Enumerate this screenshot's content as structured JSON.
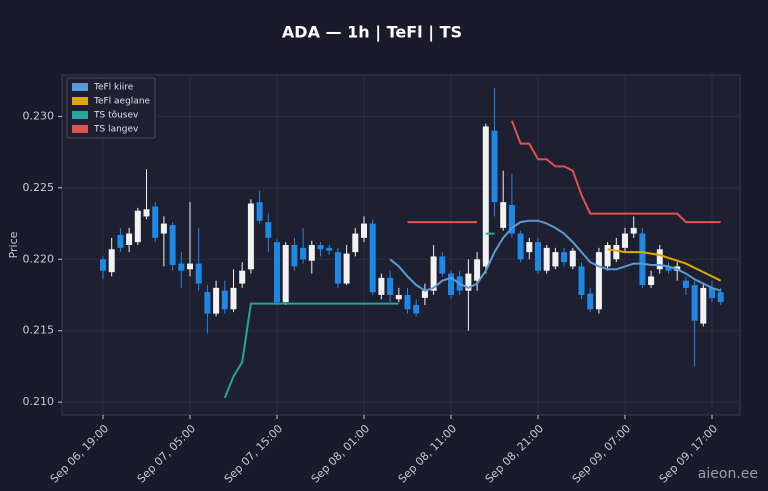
{
  "chart_data": {
    "type": "candlestick",
    "title": "ADA — 1h  |  TeFl  |  TS",
    "y_label": "Price",
    "categories": [
      "Sep 06, 19:00",
      null,
      null,
      null,
      null,
      null,
      null,
      null,
      null,
      null,
      "Sep 07, 05:00",
      null,
      null,
      null,
      null,
      null,
      null,
      null,
      null,
      null,
      "Sep 07, 15:00",
      null,
      null,
      null,
      null,
      null,
      null,
      null,
      null,
      null,
      "Sep 08, 01:00",
      null,
      null,
      null,
      null,
      null,
      null,
      null,
      null,
      null,
      "Sep 08, 11:00",
      null,
      null,
      null,
      null,
      null,
      null,
      null,
      null,
      null,
      "Sep 08, 21:00",
      null,
      null,
      null,
      null,
      null,
      null,
      null,
      null,
      null,
      "Sep 09, 07:00",
      null,
      null,
      null,
      null,
      null,
      null,
      null,
      null,
      null,
      "Sep 09, 17:00",
      null
    ],
    "open": [
      0.22,
      0.2191,
      0.2217,
      0.221,
      0.2212,
      0.223,
      0.2237,
      0.2218,
      0.2224,
      0.2197,
      0.2193,
      0.2197,
      0.2177,
      0.2162,
      0.2178,
      0.2165,
      0.2183,
      0.2193,
      0.224,
      0.2226,
      0.2212,
      0.217,
      0.221,
      0.2208,
      0.2199,
      0.221,
      0.2208,
      0.2205,
      0.2183,
      0.2205,
      0.2215,
      0.2225,
      0.2175,
      0.2187,
      0.2172,
      0.2175,
      0.2168,
      0.2173,
      0.2178,
      0.2202,
      0.219,
      0.2188,
      0.2178,
      0.2185,
      0.2195,
      0.229,
      0.2222,
      0.2238,
      0.2218,
      0.2205,
      0.2212,
      0.2192,
      0.2195,
      0.2205,
      0.2195,
      0.2195,
      0.2176,
      0.2165,
      0.2195,
      0.22,
      0.2208,
      0.2218,
      0.2218,
      0.2182,
      0.2193,
      0.2195,
      0.2192,
      0.2185,
      0.2182,
      0.2155,
      0.218,
      0.2177
    ],
    "high": [
      0.2202,
      0.2215,
      0.2222,
      0.2222,
      0.2236,
      0.2263,
      0.224,
      0.223,
      0.2226,
      0.2205,
      0.224,
      0.2222,
      0.2182,
      0.2185,
      0.2185,
      0.2193,
      0.2198,
      0.2242,
      0.2248,
      0.2232,
      0.2214,
      0.2212,
      0.2215,
      0.2222,
      0.2213,
      0.2212,
      0.221,
      0.2208,
      0.221,
      0.2222,
      0.223,
      0.2228,
      0.219,
      0.2192,
      0.218,
      0.218,
      0.2172,
      0.2183,
      0.221,
      0.2205,
      0.2192,
      0.2192,
      0.22,
      0.2205,
      0.2295,
      0.232,
      0.2262,
      0.226,
      0.222,
      0.2215,
      0.2215,
      0.221,
      0.2208,
      0.2208,
      0.2208,
      0.2198,
      0.218,
      0.2208,
      0.2212,
      0.2215,
      0.2222,
      0.223,
      0.2222,
      0.2192,
      0.221,
      0.2198,
      0.2198,
      0.2188,
      0.2185,
      0.2183,
      0.2185,
      0.218
    ],
    "low": [
      0.2186,
      0.2188,
      0.2205,
      0.2205,
      0.221,
      0.2228,
      0.2212,
      0.2195,
      0.2192,
      0.218,
      0.2188,
      0.2178,
      0.2148,
      0.216,
      0.2162,
      0.2163,
      0.218,
      0.219,
      0.2225,
      0.2205,
      0.2168,
      0.2168,
      0.2192,
      0.2197,
      0.219,
      0.2202,
      0.2203,
      0.218,
      0.2182,
      0.2202,
      0.2212,
      0.2175,
      0.2172,
      0.217,
      0.217,
      0.2162,
      0.216,
      0.2168,
      0.2175,
      0.2188,
      0.2172,
      0.2175,
      0.215,
      0.2178,
      0.219,
      0.223,
      0.222,
      0.2215,
      0.2198,
      0.22,
      0.219,
      0.219,
      0.2193,
      0.2195,
      0.2193,
      0.2172,
      0.2163,
      0.2162,
      0.2192,
      0.2198,
      0.2205,
      0.2215,
      0.218,
      0.218,
      0.219,
      0.219,
      0.2185,
      0.2175,
      0.2125,
      0.2153,
      0.217,
      0.2168
    ],
    "close": [
      0.2192,
      0.2207,
      0.2208,
      0.2218,
      0.2234,
      0.2235,
      0.2215,
      0.2225,
      0.2196,
      0.2192,
      0.2197,
      0.2183,
      0.2162,
      0.218,
      0.2165,
      0.218,
      0.2192,
      0.2239,
      0.2227,
      0.2215,
      0.217,
      0.221,
      0.2195,
      0.22,
      0.221,
      0.2207,
      0.2206,
      0.2183,
      0.2204,
      0.2218,
      0.2225,
      0.2177,
      0.2187,
      0.2175,
      0.2175,
      0.2165,
      0.2162,
      0.2178,
      0.2202,
      0.219,
      0.2175,
      0.2178,
      0.219,
      0.22,
      0.2293,
      0.224,
      0.224,
      0.2218,
      0.22,
      0.2212,
      0.2192,
      0.2208,
      0.2205,
      0.2198,
      0.2206,
      0.2175,
      0.2165,
      0.2205,
      0.221,
      0.221,
      0.2218,
      0.2222,
      0.2182,
      0.2188,
      0.2207,
      0.2192,
      0.2195,
      0.218,
      0.2157,
      0.218,
      0.2173,
      0.217
    ],
    "up_color": "#f2f2f2",
    "down_color": "#1e88e5",
    "series": [
      {
        "name": "TeFl kiire",
        "color": "#5b9bd5",
        "values": [
          null,
          null,
          null,
          null,
          null,
          null,
          null,
          null,
          null,
          null,
          null,
          null,
          null,
          null,
          null,
          null,
          null,
          null,
          null,
          null,
          null,
          null,
          null,
          null,
          null,
          null,
          null,
          null,
          null,
          null,
          null,
          null,
          null,
          0.22,
          0.2195,
          0.2188,
          0.2182,
          0.2178,
          0.218,
          0.2185,
          0.2187,
          0.2183,
          0.218,
          0.2183,
          0.2192,
          0.2205,
          0.2215,
          0.2222,
          0.2226,
          0.2227,
          0.2227,
          0.2225,
          0.2222,
          0.2218,
          0.2212,
          0.2205,
          0.2198,
          0.2195,
          0.2193,
          0.2193,
          0.2195,
          0.2197,
          0.2197,
          0.2196,
          0.2196,
          0.2195,
          0.2193,
          0.219,
          0.2186,
          0.2183,
          0.218,
          0.2178
        ]
      },
      {
        "name": "TeFl aeglane",
        "color": "#e0a800",
        "values": [
          null,
          null,
          null,
          null,
          null,
          null,
          null,
          null,
          null,
          null,
          null,
          null,
          null,
          null,
          null,
          null,
          null,
          null,
          null,
          null,
          null,
          null,
          null,
          null,
          null,
          null,
          null,
          null,
          null,
          null,
          null,
          null,
          null,
          null,
          null,
          null,
          null,
          null,
          null,
          null,
          null,
          null,
          null,
          null,
          null,
          null,
          null,
          null,
          null,
          null,
          null,
          null,
          null,
          null,
          null,
          null,
          null,
          null,
          0.2207,
          0.2206,
          0.2205,
          0.2205,
          0.2205,
          0.2204,
          0.2203,
          0.2201,
          0.2199,
          0.2197,
          0.2194,
          0.2191,
          0.2188,
          0.2185
        ]
      },
      {
        "name": "TS tõusev",
        "color": "#26a69a",
        "values": [
          null,
          null,
          null,
          null,
          null,
          null,
          null,
          null,
          null,
          null,
          null,
          null,
          null,
          null,
          0.2103,
          0.2118,
          0.2128,
          0.2169,
          0.2169,
          0.2169,
          0.2169,
          0.2169,
          0.2169,
          0.2169,
          0.2169,
          0.2169,
          0.2169,
          0.2169,
          0.2169,
          0.2169,
          0.2169,
          0.2169,
          0.2169,
          0.2169,
          0.2169,
          null,
          null,
          null,
          null,
          null,
          null,
          null,
          null,
          null,
          0.2218,
          0.2218,
          null,
          null,
          null,
          null,
          null,
          null,
          null,
          null,
          null,
          null,
          null,
          null,
          null,
          null,
          null,
          null,
          null,
          null,
          null,
          null,
          null,
          null,
          null,
          null,
          null,
          null
        ]
      },
      {
        "name": "TS langev",
        "color": "#e05252",
        "values": [
          null,
          null,
          null,
          null,
          null,
          null,
          null,
          null,
          null,
          null,
          null,
          null,
          null,
          null,
          null,
          null,
          null,
          null,
          null,
          null,
          null,
          null,
          null,
          null,
          null,
          null,
          null,
          null,
          null,
          null,
          null,
          null,
          null,
          null,
          null,
          0.2226,
          0.2226,
          0.2226,
          0.2226,
          0.2226,
          0.2226,
          0.2226,
          0.2226,
          0.2226,
          null,
          null,
          null,
          0.2297,
          0.2281,
          0.2281,
          0.227,
          0.227,
          0.2265,
          0.2265,
          0.2262,
          0.2245,
          0.2232,
          0.2232,
          0.2232,
          0.2232,
          0.2232,
          0.2232,
          0.2232,
          0.2232,
          0.2232,
          0.2232,
          0.2232,
          0.2226,
          0.2226,
          0.2226,
          0.2226,
          0.2226
        ]
      }
    ],
    "ylim": [
      0.2091,
      0.2329
    ],
    "yticks": [
      {
        "value": 0.21,
        "label": "0.210"
      },
      {
        "value": 0.215,
        "label": "0.215"
      },
      {
        "value": 0.22,
        "label": "0.220"
      },
      {
        "value": 0.225,
        "label": "0.225"
      },
      {
        "value": 0.23,
        "label": "0.230"
      }
    ],
    "grid": true,
    "legend": "upper left"
  },
  "watermark": "aieon.ee"
}
